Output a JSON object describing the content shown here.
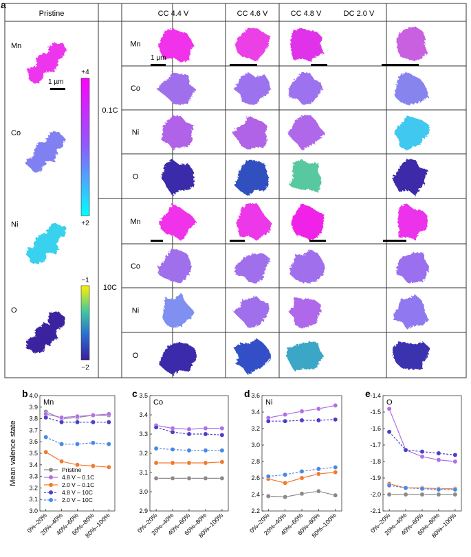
{
  "panel_a": {
    "label": "a",
    "pristine_header": "Pristine",
    "columns": [
      "CC 4.4 V",
      "CC 4.6 V",
      "CC 4.8 V",
      "DC 2.0 V"
    ],
    "rates": [
      "0.1C",
      "10C"
    ],
    "elements": [
      "Mn",
      "Co",
      "Ni",
      "O"
    ],
    "scalebar_label": "1 µm",
    "colorbar_tm": {
      "max": "+4",
      "min": "+2"
    },
    "colorbar_o": {
      "max": "−1",
      "min": "−2"
    },
    "colors": {
      "tm_top": "#ff00ff",
      "tm_mid": "#8c5cff",
      "tm_bottom": "#00ffff",
      "o_top": "#fff000",
      "o_mid": "#1fa0c8",
      "o_bottom": "#3a1ca0"
    },
    "particle_colors": {
      "pristine": [
        "#ee35ee",
        "#8080f2",
        "#38d2ee",
        "#3b229e"
      ],
      "rate_0.1C": [
        [
          "#f030ea",
          "#ea40e6",
          "#e030e8",
          "#c860e0"
        ],
        [
          "#a070ec",
          "#9c72ee",
          "#9c72ee",
          "#8884ee"
        ],
        [
          "#b062e8",
          "#b064e6",
          "#b068ea",
          "#40c8f0"
        ],
        [
          "#3a2aaa",
          "#3050c0",
          "#58c8a0",
          "#3c2aa8"
        ]
      ],
      "rate_10C": [
        [
          "#f030ea",
          "#ec38e8",
          "#f020e8",
          "#ec30ea"
        ],
        [
          "#a070ec",
          "#a070ec",
          "#a070ec",
          "#9a70ee"
        ],
        [
          "#8090f0",
          "#a070ec",
          "#b068ea",
          "#9078f0"
        ],
        [
          "#3a2aaa",
          "#3050c8",
          "#3aa6c6",
          "#3a30b0"
        ]
      ]
    }
  },
  "chart_data": [
    {
      "type": "line",
      "label": "b",
      "title": "Mn",
      "ylabel": "Mean valence state",
      "categories": [
        "0%–20%",
        "20%–40%",
        "40%–60%",
        "60%–80%",
        "80%–100%"
      ],
      "ylim": [
        3.0,
        4.0
      ],
      "yticks": [
        "3.0",
        "3.1",
        "3.2",
        "3.3",
        "3.4",
        "3.5",
        "3.6",
        "3.7",
        "3.8",
        "3.9",
        "4.0"
      ],
      "series": [
        {
          "name": "Pristine",
          "color": "#8a8a8a",
          "dashed": false,
          "values": [
            3.86,
            3.8,
            3.81,
            3.83,
            3.83
          ]
        },
        {
          "name": "4.8 V – 0.1C",
          "color": "#b06ee8",
          "dashed": false,
          "values": [
            3.84,
            3.81,
            3.82,
            3.83,
            3.84
          ]
        },
        {
          "name": "2.0 V – 0.1C",
          "color": "#f07a2e",
          "dashed": false,
          "values": [
            3.51,
            3.43,
            3.4,
            3.39,
            3.38
          ]
        },
        {
          "name": "4.8 V – 10C",
          "color": "#4a3ec8",
          "dashed": true,
          "values": [
            3.81,
            3.77,
            3.77,
            3.77,
            3.77
          ]
        },
        {
          "name": "2.0 V – 10C",
          "color": "#4a88e8",
          "dashed": true,
          "values": [
            3.64,
            3.58,
            3.58,
            3.59,
            3.58
          ]
        }
      ],
      "legend": "bottom-left"
    },
    {
      "type": "line",
      "label": "c",
      "title": "Co",
      "categories": [
        "0%–20%",
        "20%–40%",
        "40%–60%",
        "60%–80%",
        "80%–100%"
      ],
      "ylim": [
        2.9,
        3.5
      ],
      "yticks": [
        "2.9",
        "3.0",
        "3.1",
        "3.2",
        "3.3",
        "3.4",
        "3.5"
      ],
      "series": [
        {
          "name": "Pristine",
          "color": "#8a8a8a",
          "dashed": false,
          "values": [
            3.07,
            3.07,
            3.07,
            3.07,
            3.07
          ]
        },
        {
          "name": "4.8 V – 0.1C",
          "color": "#b06ee8",
          "dashed": false,
          "values": [
            3.345,
            3.33,
            3.325,
            3.33,
            3.33
          ]
        },
        {
          "name": "2.0 V – 0.1C",
          "color": "#f07a2e",
          "dashed": false,
          "values": [
            3.15,
            3.15,
            3.15,
            3.15,
            3.155
          ]
        },
        {
          "name": "4.8 V – 10C",
          "color": "#4a3ec8",
          "dashed": true,
          "values": [
            3.335,
            3.31,
            3.3,
            3.3,
            3.295
          ]
        },
        {
          "name": "2.0 V – 10C",
          "color": "#4a88e8",
          "dashed": true,
          "values": [
            3.225,
            3.22,
            3.215,
            3.215,
            3.215
          ]
        }
      ]
    },
    {
      "type": "line",
      "label": "d",
      "title": "Ni",
      "categories": [
        "0%–20%",
        "20%–40%",
        "40%–60%",
        "60%–80%",
        "80%–100%"
      ],
      "ylim": [
        2.2,
        3.6
      ],
      "yticks": [
        "2.2",
        "2.4",
        "2.6",
        "2.8",
        "3.0",
        "3.2",
        "3.4",
        "3.6"
      ],
      "series": [
        {
          "name": "Pristine",
          "color": "#8a8a8a",
          "dashed": false,
          "values": [
            2.38,
            2.37,
            2.41,
            2.44,
            2.39
          ]
        },
        {
          "name": "4.8 V – 0.1C",
          "color": "#b06ee8",
          "dashed": false,
          "values": [
            3.33,
            3.37,
            3.41,
            3.44,
            3.48
          ]
        },
        {
          "name": "2.0 V – 0.1C",
          "color": "#f07a2e",
          "dashed": false,
          "values": [
            2.59,
            2.54,
            2.6,
            2.65,
            2.67
          ]
        },
        {
          "name": "4.8 V – 10C",
          "color": "#4a3ec8",
          "dashed": true,
          "values": [
            3.29,
            3.29,
            3.3,
            3.3,
            3.31
          ]
        },
        {
          "name": "2.0 V – 10C",
          "color": "#4a88e8",
          "dashed": true,
          "values": [
            2.62,
            2.64,
            2.68,
            2.71,
            2.73
          ]
        }
      ]
    },
    {
      "type": "line",
      "label": "e",
      "title": "O",
      "categories": [
        "0%–20%",
        "20%–40%",
        "40%–60%",
        "60%–80%",
        "80%–100%"
      ],
      "ylim": [
        -2.1,
        -1.4
      ],
      "yticks": [
        "-2.1",
        "-2.0",
        "-1.9",
        "-1.8",
        "-1.7",
        "-1.6",
        "-1.5",
        "-1.4"
      ],
      "series": [
        {
          "name": "Pristine",
          "color": "#8a8a8a",
          "dashed": false,
          "values": [
            -2.0,
            -2.0,
            -2.0,
            -2.0,
            -2.0
          ]
        },
        {
          "name": "4.8 V – 0.1C",
          "color": "#b06ee8",
          "dashed": false,
          "values": [
            -1.48,
            -1.73,
            -1.77,
            -1.79,
            -1.8
          ]
        },
        {
          "name": "2.0 V – 0.1C",
          "color": "#f07a2e",
          "dashed": false,
          "values": [
            -1.935,
            -1.96,
            -1.96,
            -1.965,
            -1.965
          ]
        },
        {
          "name": "4.8 V – 10C",
          "color": "#4a3ec8",
          "dashed": true,
          "values": [
            -1.62,
            -1.73,
            -1.74,
            -1.75,
            -1.76
          ]
        },
        {
          "name": "2.0 V – 10C",
          "color": "#4a88e8",
          "dashed": true,
          "values": [
            -1.945,
            -1.96,
            -1.965,
            -1.97,
            -1.97
          ]
        }
      ]
    }
  ]
}
